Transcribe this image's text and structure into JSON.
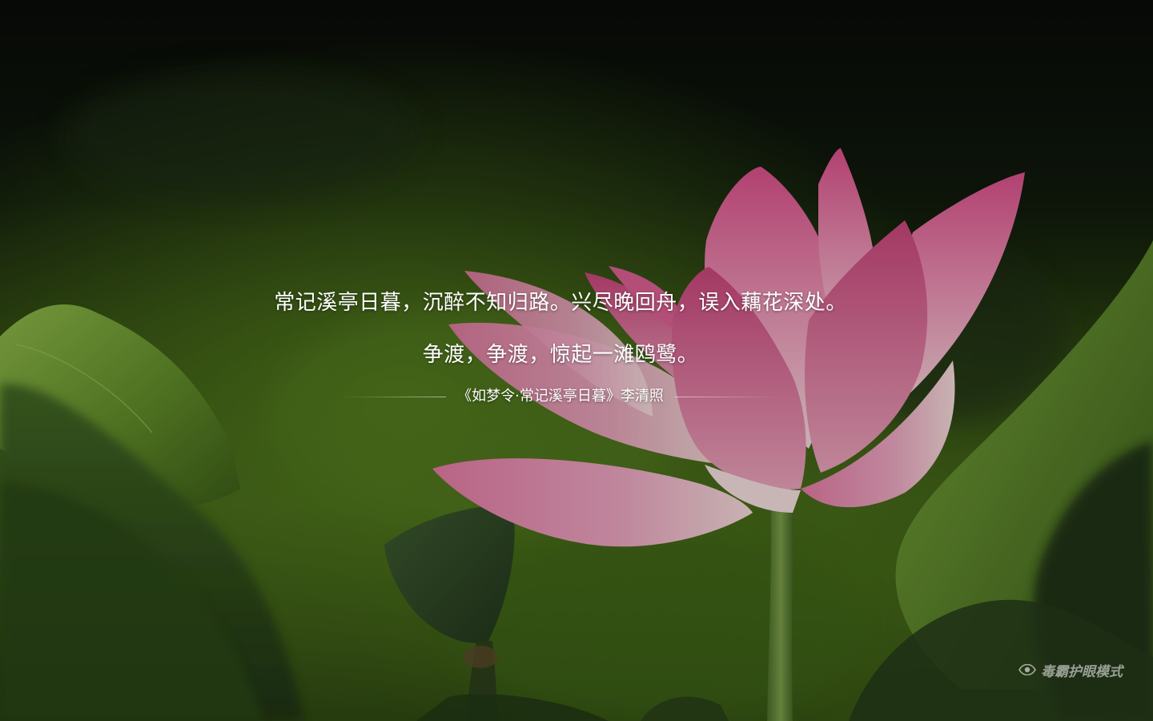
{
  "poem": {
    "line1": "常记溪亭日暮，沉醉不知归路。兴尽晚回舟，误入藕花深处。",
    "line2": "争渡，争渡，惊起一滩鸥鹭。",
    "attribution": "《如梦令·常记溪亭日暮》李清照"
  },
  "eye_mode": {
    "icon": "eye-icon",
    "label": "毒霸护眼模式"
  },
  "colors": {
    "text": "#ffffff",
    "petal_pink": "#e0709a",
    "leaf_green": "#5f8a28",
    "background_dark": "#0c1208"
  }
}
